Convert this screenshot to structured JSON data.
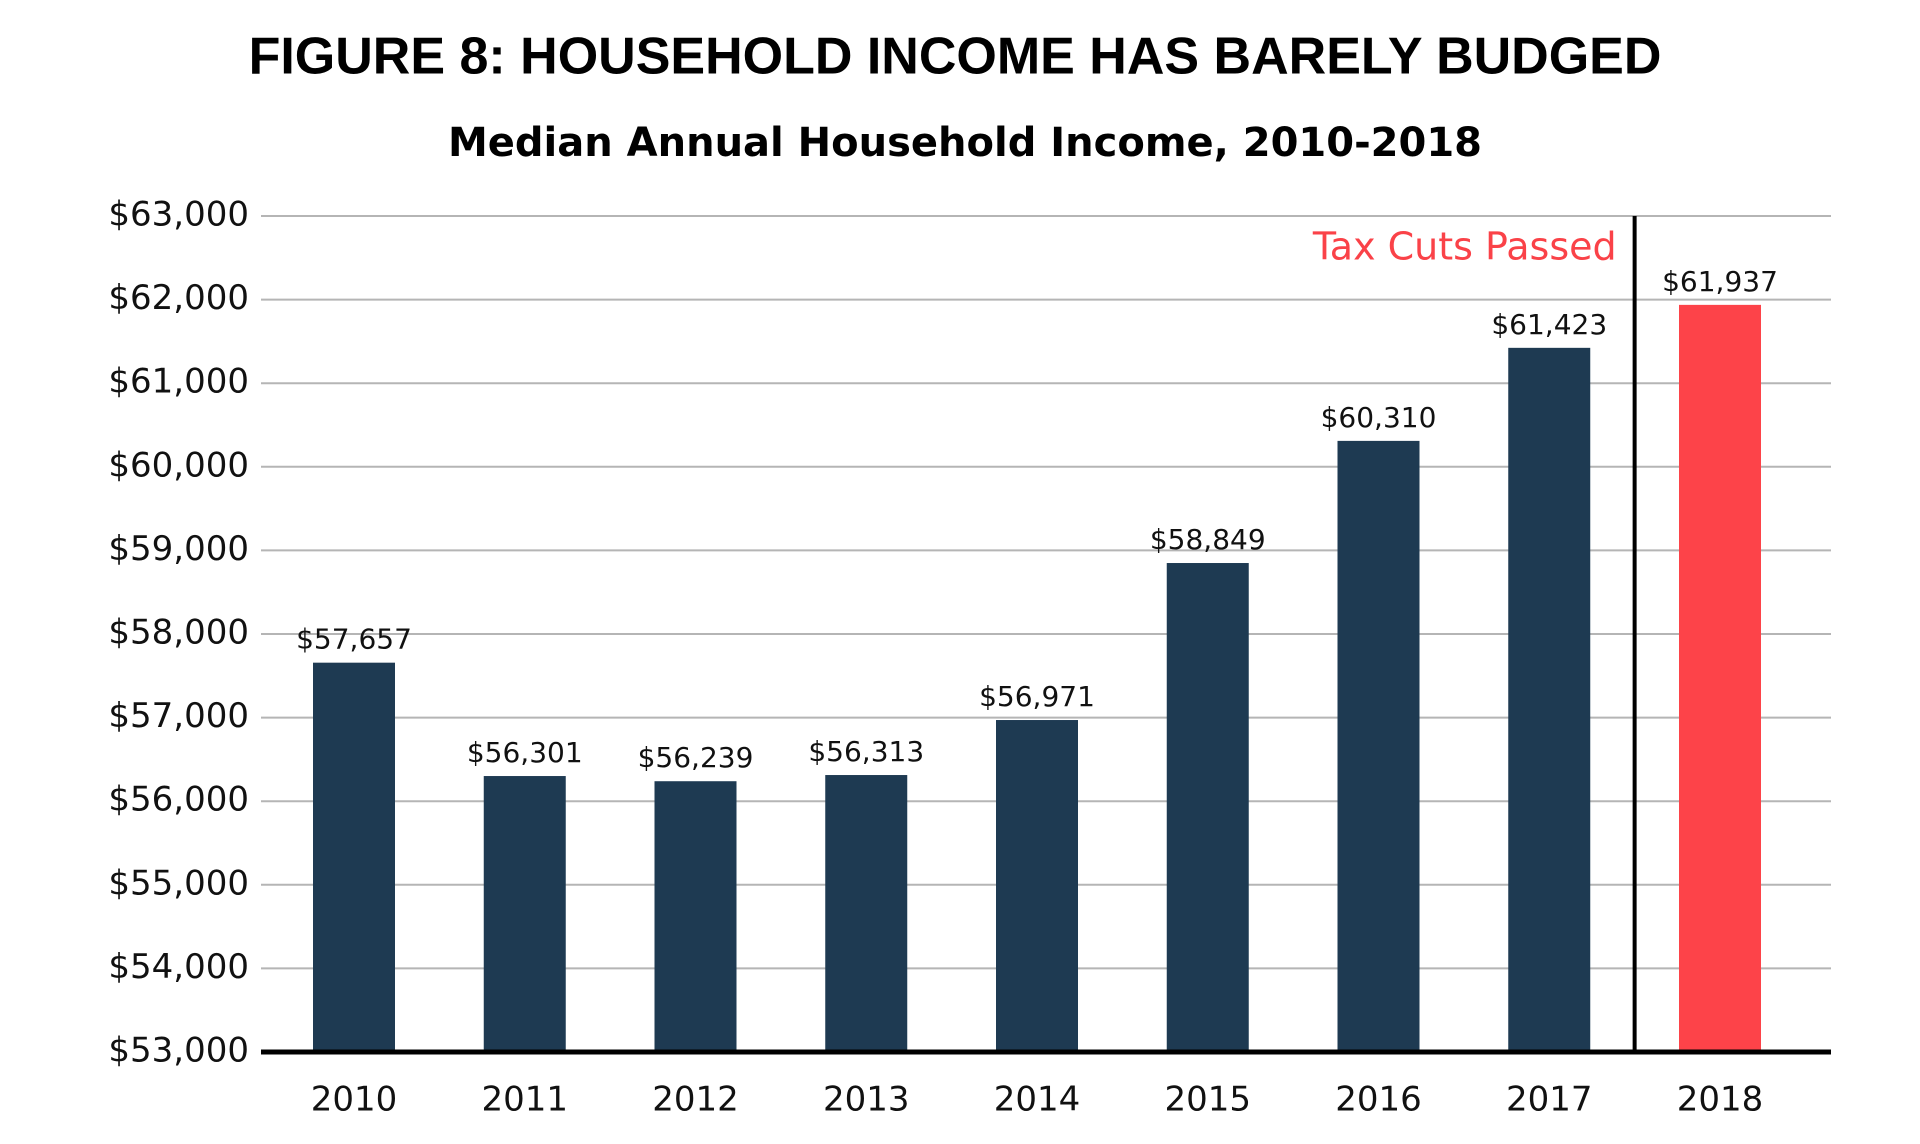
{
  "chart_data": {
    "type": "bar",
    "title": "FIGURE 8: HOUSEHOLD INCOME HAS BARELY BUDGED",
    "subtitle": "Median Annual Household Income, 2010-2018",
    "categories": [
      "2010",
      "2011",
      "2012",
      "2013",
      "2014",
      "2015",
      "2016",
      "2017",
      "2018"
    ],
    "values": [
      57657,
      56301,
      56239,
      56313,
      56971,
      58849,
      60310,
      61423,
      61937
    ],
    "value_labels": [
      "$57,657",
      "$56,301",
      "$56,239",
      "$56,313",
      "$56,971",
      "$58,849",
      "$60,310",
      "$61,423",
      "$61,937"
    ],
    "colors": [
      "#1e3a52",
      "#1e3a52",
      "#1e3a52",
      "#1e3a52",
      "#1e3a52",
      "#1e3a52",
      "#1e3a52",
      "#1e3a52",
      "#fd4349"
    ],
    "ylim": [
      53000,
      63000
    ],
    "yticks": [
      {
        "value": 53000,
        "label": "$53,000"
      },
      {
        "value": 54000,
        "label": "$54,000"
      },
      {
        "value": 55000,
        "label": "$55,000"
      },
      {
        "value": 56000,
        "label": "$56,000"
      },
      {
        "value": 57000,
        "label": "$57,000"
      },
      {
        "value": 58000,
        "label": "$58,000"
      },
      {
        "value": 59000,
        "label": "$59,000"
      },
      {
        "value": 60000,
        "label": "$60,000"
      },
      {
        "value": 61000,
        "label": "$61,000"
      },
      {
        "value": 62000,
        "label": "$62,000"
      },
      {
        "value": 63000,
        "label": "$63,000"
      }
    ],
    "grid": true,
    "annotation": {
      "text": "Tax Cuts Passed",
      "color": "#fa4248"
    }
  }
}
